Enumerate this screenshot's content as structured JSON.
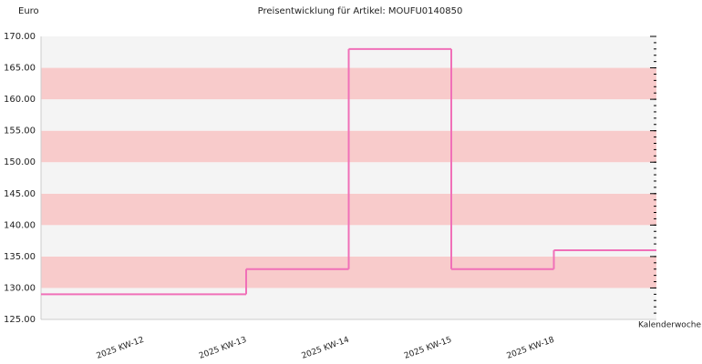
{
  "chart_data": {
    "type": "step",
    "title": "Preisentwicklung für Artikel: MOUFU0140850",
    "y_label": "Euro",
    "x_label": "Kalenderwoche",
    "categories": [
      "2025 KW-12",
      "2025 KW-13",
      "2025 KW-14",
      "2025 KW-15",
      "2025 KW-18",
      null
    ],
    "values": [
      129,
      129,
      133,
      168,
      133,
      136
    ],
    "color": "#f070b8",
    "band_colors": [
      "#f4f4f4",
      "#f8cbcb"
    ],
    "ylim": [
      125,
      170
    ],
    "yticks": [
      {
        "value": 125,
        "label": "125.00"
      },
      {
        "value": 130,
        "label": "130.00"
      },
      {
        "value": 135,
        "label": "135.00"
      },
      {
        "value": 140,
        "label": "140.00"
      },
      {
        "value": 145,
        "label": "145.00"
      },
      {
        "value": 150,
        "label": "150.00"
      },
      {
        "value": 155,
        "label": "155.00"
      },
      {
        "value": 160,
        "label": "160.00"
      },
      {
        "value": 165,
        "label": "165.00"
      },
      {
        "value": 170,
        "label": "170.00"
      }
    ]
  }
}
